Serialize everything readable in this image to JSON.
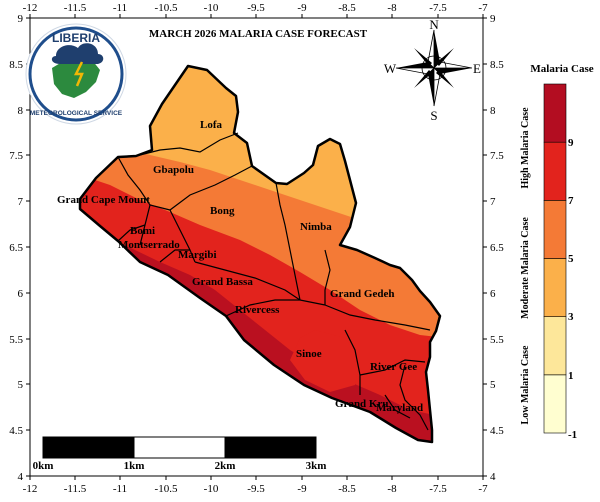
{
  "title": "MARCH 2026 MALARIA CASE FORECAST",
  "logo": {
    "line1": "LIBERIA",
    "line2": "METEOROLOGICAL SERVICE"
  },
  "compass": {
    "n": "N",
    "s": "S",
    "e": "E",
    "w": "W"
  },
  "axes": {
    "x_ticks": [
      "-12",
      "-11.5",
      "-11",
      "-10.5",
      "-10",
      "-9.5",
      "-9",
      "-8.5",
      "-8",
      "-7.5",
      "-7"
    ],
    "y_ticks": [
      "9",
      "8.5",
      "8",
      "7.5",
      "7",
      "6.5",
      "6",
      "5.5",
      "5",
      "4.5",
      "4"
    ]
  },
  "counties": [
    {
      "name": "Lofa"
    },
    {
      "name": "Gbapolu"
    },
    {
      "name": "Grand Cape Mount"
    },
    {
      "name": "Bong"
    },
    {
      "name": "Nimba"
    },
    {
      "name": "Bomi"
    },
    {
      "name": "Montserrado"
    },
    {
      "name": "Margibi"
    },
    {
      "name": "Grand Bassa"
    },
    {
      "name": "Grand Gedeh"
    },
    {
      "name": "Rivercess"
    },
    {
      "name": "Sinoe"
    },
    {
      "name": "River Gee"
    },
    {
      "name": "Grand Kru"
    },
    {
      "name": "Maryland"
    }
  ],
  "scale_bar": {
    "labels": [
      "0km",
      "1km",
      "2km",
      "3km"
    ]
  },
  "legend": {
    "title": "Malaria Case",
    "ticks": [
      "-1",
      "1",
      "3",
      "5",
      "7",
      "9"
    ],
    "side_labels": [
      "High Malaria Case",
      "Moderate Malaria Case",
      "Low Malaria Case"
    ],
    "colors": [
      "#fffed0",
      "#fde79a",
      "#fbb04a",
      "#f47a36",
      "#e2231d",
      "#b30d21"
    ]
  }
}
